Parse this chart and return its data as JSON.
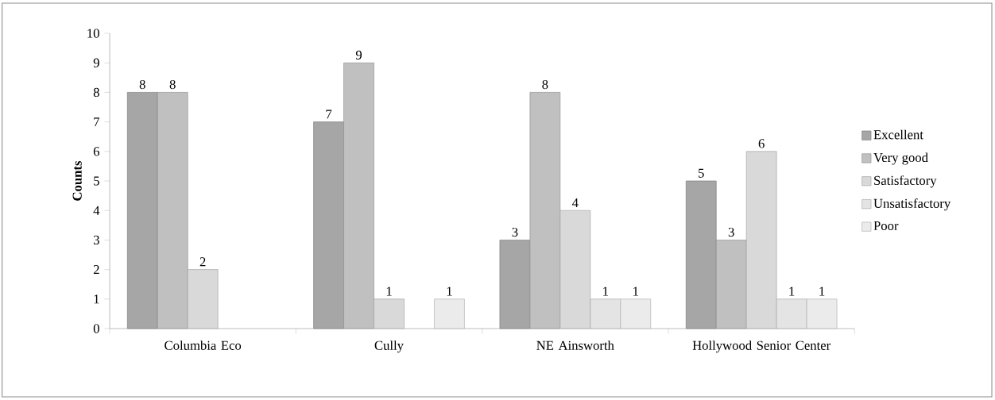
{
  "chart_data": {
    "type": "bar",
    "ylabel": "Counts",
    "categories": [
      "Columbia Eco",
      "Cully",
      "NE Ainsworth",
      "Hollywood Senior Center"
    ],
    "series": [
      {
        "name": "Excellent",
        "color": "#a6a6a6",
        "values": [
          8,
          7,
          3,
          5
        ]
      },
      {
        "name": "Very good",
        "color": "#c0c0c0",
        "values": [
          8,
          9,
          8,
          3
        ]
      },
      {
        "name": "Satisfactory",
        "color": "#d9d9d9",
        "values": [
          2,
          1,
          4,
          6
        ]
      },
      {
        "name": "Unsatisfactory",
        "color": "#e4e4e4",
        "values": [
          null,
          null,
          1,
          1
        ]
      },
      {
        "name": "Poor",
        "color": "#ebebeb",
        "values": [
          null,
          1,
          1,
          1
        ]
      }
    ],
    "ylim": [
      0,
      10
    ],
    "yticks": [
      0,
      1,
      2,
      3,
      4,
      5,
      6,
      7,
      8,
      9,
      10
    ],
    "data_labels": true,
    "grid": false,
    "legend": "right"
  }
}
